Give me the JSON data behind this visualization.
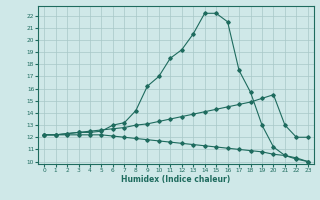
{
  "xlabel": "Humidex (Indice chaleur)",
  "ylabel": "",
  "bg_color": "#cfe8e8",
  "grid_color": "#a8c8c8",
  "line_color": "#1e6b5e",
  "xlim": [
    -0.5,
    23.5
  ],
  "ylim": [
    9.8,
    22.8
  ],
  "yticks": [
    10,
    11,
    12,
    13,
    14,
    15,
    16,
    17,
    18,
    19,
    20,
    21,
    22
  ],
  "xticks": [
    0,
    1,
    2,
    3,
    4,
    5,
    6,
    7,
    8,
    9,
    10,
    11,
    12,
    13,
    14,
    15,
    16,
    17,
    18,
    19,
    20,
    21,
    22,
    23
  ],
  "line1_x": [
    0,
    1,
    2,
    3,
    4,
    5,
    6,
    7,
    8,
    9,
    10,
    11,
    12,
    13,
    14,
    15,
    16,
    17,
    18,
    19,
    20,
    21,
    22,
    23
  ],
  "line1_y": [
    12.2,
    12.2,
    12.3,
    12.4,
    12.4,
    12.5,
    13.0,
    13.2,
    14.2,
    16.2,
    17.0,
    18.5,
    19.2,
    20.5,
    22.2,
    22.2,
    21.5,
    17.5,
    15.7,
    13.0,
    11.2,
    10.5,
    10.2,
    10.0
  ],
  "line2_x": [
    0,
    1,
    2,
    3,
    4,
    5,
    6,
    7,
    8,
    9,
    10,
    11,
    12,
    13,
    14,
    15,
    16,
    17,
    18,
    19,
    20,
    21,
    22,
    23
  ],
  "line2_y": [
    12.2,
    12.2,
    12.3,
    12.4,
    12.5,
    12.6,
    12.7,
    12.8,
    13.0,
    13.1,
    13.3,
    13.5,
    13.7,
    13.9,
    14.1,
    14.3,
    14.5,
    14.7,
    14.9,
    15.2,
    15.5,
    13.0,
    12.0,
    12.0
  ],
  "line3_x": [
    0,
    1,
    2,
    3,
    4,
    5,
    6,
    7,
    8,
    9,
    10,
    11,
    12,
    13,
    14,
    15,
    16,
    17,
    18,
    19,
    20,
    21,
    22,
    23
  ],
  "line3_y": [
    12.2,
    12.2,
    12.2,
    12.2,
    12.2,
    12.2,
    12.1,
    12.0,
    11.9,
    11.8,
    11.7,
    11.6,
    11.5,
    11.4,
    11.3,
    11.2,
    11.1,
    11.0,
    10.9,
    10.8,
    10.6,
    10.5,
    10.3,
    10.0
  ]
}
